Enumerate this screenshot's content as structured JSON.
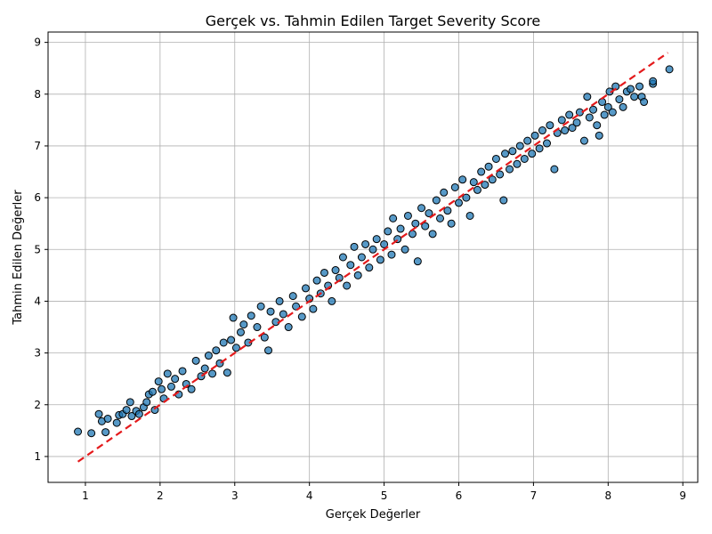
{
  "chart_data": {
    "type": "scatter",
    "title": "Gerçek vs. Tahmin Edilen Target Severity Score",
    "xlabel": "Gerçek Değerler",
    "ylabel": "Tahmin Edilen Değerler",
    "xlim": [
      0.5,
      9.2
    ],
    "ylim": [
      0.5,
      9.2
    ],
    "xticks": [
      "1",
      "2",
      "3",
      "4",
      "5",
      "6",
      "7",
      "8",
      "9"
    ],
    "yticks": [
      "1",
      "2",
      "3",
      "4",
      "5",
      "6",
      "7",
      "8",
      "9"
    ],
    "grid": true,
    "point_color": "#1f77b4",
    "point_edge_color": "#000000",
    "reference_line": {
      "from": [
        0.9,
        0.9
      ],
      "to": [
        8.8,
        8.8
      ],
      "color": "#e41a1c",
      "style": "dashed"
    },
    "points": [
      [
        0.9,
        1.48
      ],
      [
        1.08,
        1.45
      ],
      [
        1.18,
        1.82
      ],
      [
        1.22,
        1.68
      ],
      [
        1.27,
        1.47
      ],
      [
        1.3,
        1.73
      ],
      [
        1.42,
        1.65
      ],
      [
        1.45,
        1.8
      ],
      [
        1.5,
        1.82
      ],
      [
        1.55,
        1.9
      ],
      [
        1.6,
        2.05
      ],
      [
        1.62,
        1.78
      ],
      [
        1.68,
        1.88
      ],
      [
        1.72,
        1.82
      ],
      [
        1.78,
        1.95
      ],
      [
        1.82,
        2.05
      ],
      [
        1.85,
        2.2
      ],
      [
        1.9,
        2.25
      ],
      [
        1.93,
        1.9
      ],
      [
        1.98,
        2.45
      ],
      [
        2.02,
        2.3
      ],
      [
        2.05,
        2.12
      ],
      [
        2.1,
        2.6
      ],
      [
        2.15,
        2.35
      ],
      [
        2.2,
        2.5
      ],
      [
        2.25,
        2.2
      ],
      [
        2.3,
        2.65
      ],
      [
        2.35,
        2.4
      ],
      [
        2.42,
        2.3
      ],
      [
        2.48,
        2.85
      ],
      [
        2.55,
        2.55
      ],
      [
        2.6,
        2.7
      ],
      [
        2.65,
        2.95
      ],
      [
        2.7,
        2.6
      ],
      [
        2.75,
        3.05
      ],
      [
        2.8,
        2.8
      ],
      [
        2.85,
        3.2
      ],
      [
        2.9,
        2.62
      ],
      [
        2.95,
        3.25
      ],
      [
        2.98,
        3.68
      ],
      [
        3.02,
        3.1
      ],
      [
        3.08,
        3.4
      ],
      [
        3.12,
        3.55
      ],
      [
        3.18,
        3.2
      ],
      [
        3.22,
        3.72
      ],
      [
        3.3,
        3.5
      ],
      [
        3.35,
        3.9
      ],
      [
        3.4,
        3.3
      ],
      [
        3.45,
        3.05
      ],
      [
        3.48,
        3.8
      ],
      [
        3.55,
        3.6
      ],
      [
        3.6,
        4.0
      ],
      [
        3.65,
        3.75
      ],
      [
        3.72,
        3.5
      ],
      [
        3.78,
        4.1
      ],
      [
        3.82,
        3.9
      ],
      [
        3.9,
        3.7
      ],
      [
        3.95,
        4.25
      ],
      [
        4.0,
        4.05
      ],
      [
        4.05,
        3.85
      ],
      [
        4.1,
        4.4
      ],
      [
        4.15,
        4.15
      ],
      [
        4.2,
        4.55
      ],
      [
        4.25,
        4.3
      ],
      [
        4.3,
        4.0
      ],
      [
        4.35,
        4.6
      ],
      [
        4.4,
        4.45
      ],
      [
        4.45,
        4.85
      ],
      [
        4.5,
        4.3
      ],
      [
        4.55,
        4.7
      ],
      [
        4.6,
        5.05
      ],
      [
        4.65,
        4.5
      ],
      [
        4.7,
        4.85
      ],
      [
        4.75,
        5.1
      ],
      [
        4.8,
        4.65
      ],
      [
        4.85,
        5.0
      ],
      [
        4.9,
        5.2
      ],
      [
        4.95,
        4.8
      ],
      [
        5.0,
        5.1
      ],
      [
        5.05,
        5.35
      ],
      [
        5.1,
        4.9
      ],
      [
        5.12,
        5.6
      ],
      [
        5.18,
        5.2
      ],
      [
        5.22,
        5.4
      ],
      [
        5.28,
        5.0
      ],
      [
        5.32,
        5.65
      ],
      [
        5.38,
        5.3
      ],
      [
        5.42,
        5.5
      ],
      [
        5.45,
        4.77
      ],
      [
        5.5,
        5.8
      ],
      [
        5.55,
        5.45
      ],
      [
        5.6,
        5.7
      ],
      [
        5.65,
        5.3
      ],
      [
        5.7,
        5.95
      ],
      [
        5.75,
        5.6
      ],
      [
        5.8,
        6.1
      ],
      [
        5.85,
        5.75
      ],
      [
        5.9,
        5.5
      ],
      [
        5.95,
        6.2
      ],
      [
        6.0,
        5.9
      ],
      [
        6.05,
        6.35
      ],
      [
        6.1,
        6.0
      ],
      [
        6.15,
        5.65
      ],
      [
        6.2,
        6.3
      ],
      [
        6.25,
        6.15
      ],
      [
        6.3,
        6.5
      ],
      [
        6.35,
        6.25
      ],
      [
        6.4,
        6.6
      ],
      [
        6.45,
        6.35
      ],
      [
        6.5,
        6.75
      ],
      [
        6.55,
        6.45
      ],
      [
        6.6,
        5.95
      ],
      [
        6.62,
        6.85
      ],
      [
        6.68,
        6.55
      ],
      [
        6.72,
        6.9
      ],
      [
        6.78,
        6.65
      ],
      [
        6.82,
        7.0
      ],
      [
        6.88,
        6.75
      ],
      [
        6.92,
        7.1
      ],
      [
        6.98,
        6.85
      ],
      [
        7.02,
        7.2
      ],
      [
        7.08,
        6.95
      ],
      [
        7.12,
        7.3
      ],
      [
        7.18,
        7.05
      ],
      [
        7.22,
        7.4
      ],
      [
        7.28,
        6.55
      ],
      [
        7.32,
        7.25
      ],
      [
        7.38,
        7.5
      ],
      [
        7.42,
        7.3
      ],
      [
        7.48,
        7.6
      ],
      [
        7.52,
        7.35
      ],
      [
        7.58,
        7.45
      ],
      [
        7.62,
        7.65
      ],
      [
        7.68,
        7.1
      ],
      [
        7.72,
        7.95
      ],
      [
        7.75,
        7.55
      ],
      [
        7.8,
        7.7
      ],
      [
        7.85,
        7.4
      ],
      [
        7.88,
        7.2
      ],
      [
        7.92,
        7.85
      ],
      [
        7.95,
        7.6
      ],
      [
        8.0,
        7.75
      ],
      [
        8.02,
        8.05
      ],
      [
        8.06,
        7.65
      ],
      [
        8.1,
        8.15
      ],
      [
        8.15,
        7.9
      ],
      [
        8.2,
        7.75
      ],
      [
        8.25,
        8.05
      ],
      [
        8.3,
        8.1
      ],
      [
        8.35,
        7.95
      ],
      [
        8.42,
        8.15
      ],
      [
        8.45,
        7.95
      ],
      [
        8.48,
        7.85
      ],
      [
        8.6,
        8.2
      ],
      [
        8.6,
        8.25
      ],
      [
        8.82,
        8.48
      ]
    ]
  }
}
